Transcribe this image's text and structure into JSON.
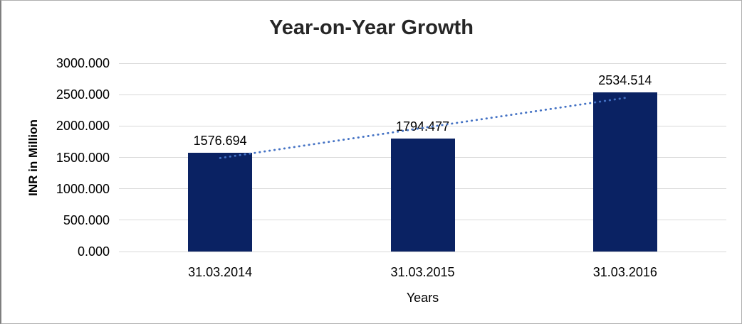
{
  "chart_data": {
    "type": "bar",
    "title": "Year-on-Year Growth",
    "ylabel": "INR in Million",
    "xlabel": "Years",
    "categories": [
      "31.03.2014",
      "31.03.2015",
      "31.03.2016"
    ],
    "values": [
      1576.694,
      1794.477,
      2534.514
    ],
    "data_labels": [
      "1576.694",
      "1794.477",
      "2534.514"
    ],
    "ylim": [
      0,
      3000
    ],
    "yticks": [
      {
        "value": 0,
        "label": "0.000"
      },
      {
        "value": 500,
        "label": "500.000"
      },
      {
        "value": 1000,
        "label": "1000.000"
      },
      {
        "value": 1500,
        "label": "1500.000"
      },
      {
        "value": 2000,
        "label": "2000.000"
      },
      {
        "value": 2500,
        "label": "2500.000"
      },
      {
        "value": 3000,
        "label": "3000.000"
      }
    ],
    "grid": true,
    "legend": false,
    "trendline": {
      "type": "linear",
      "style": "dotted",
      "start_value": 1489.7,
      "end_value": 2447.5
    },
    "colors": {
      "bar": "#0a2263",
      "trendline": "#4472c4",
      "gridline": "#d9d9d9",
      "title_text": "#262626",
      "background": "#ffffff"
    }
  }
}
